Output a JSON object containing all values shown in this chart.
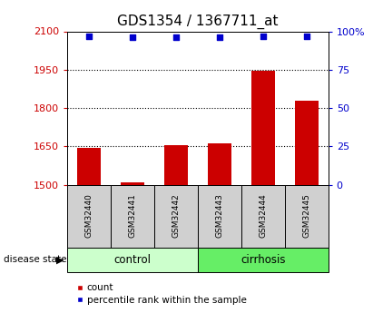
{
  "title": "GDS1354 / 1367711_at",
  "samples": [
    "GSM32440",
    "GSM32441",
    "GSM32442",
    "GSM32443",
    "GSM32444",
    "GSM32445"
  ],
  "count_values": [
    1645,
    1510,
    1655,
    1660,
    1945,
    1830
  ],
  "percentile_values": [
    97,
    96,
    96,
    96,
    97,
    97
  ],
  "ylim_left": [
    1500,
    2100
  ],
  "ylim_right": [
    0,
    100
  ],
  "yticks_left": [
    1500,
    1650,
    1800,
    1950,
    2100
  ],
  "yticks_right": [
    0,
    25,
    50,
    75,
    100
  ],
  "ytick_labels_right": [
    "0",
    "25",
    "50",
    "75",
    "100%"
  ],
  "dotted_lines": [
    1650,
    1800,
    1950
  ],
  "bar_color": "#cc0000",
  "dot_color": "#0000cc",
  "n_control": 3,
  "control_label": "control",
  "cirrhosis_label": "cirrhosis",
  "control_color": "#ccffcc",
  "cirrhosis_color": "#66ee66",
  "group_label": "disease state",
  "legend_count": "count",
  "legend_percentile": "percentile rank within the sample",
  "title_fontsize": 11,
  "axis_color_left": "#cc0000",
  "axis_color_right": "#0000cc",
  "bar_width": 0.55,
  "background_color": "#ffffff",
  "sample_box_color": "#d0d0d0"
}
